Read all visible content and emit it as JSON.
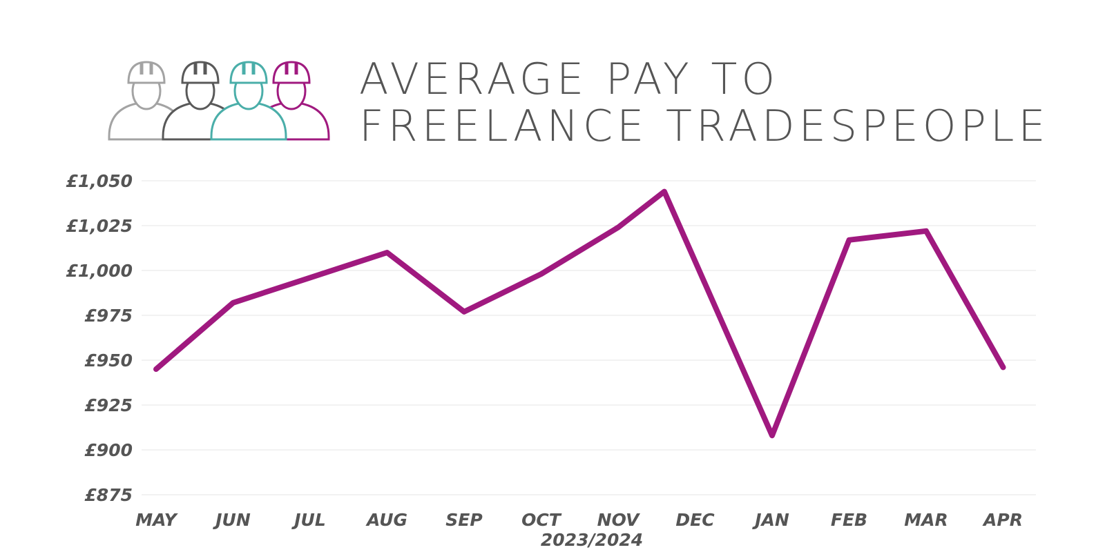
{
  "title": {
    "line1": "AVERAGE PAY TO",
    "line2": "FREELANCE TRADESPEOPLE"
  },
  "logo": {
    "icon": "tradespeople-group-icon",
    "colors": [
      "#a3a3a3",
      "#595959",
      "#4aaea9",
      "#a0197f"
    ]
  },
  "chart_data": {
    "type": "line",
    "title": "AVERAGE PAY TO FREELANCE TRADESPEOPLE",
    "xlabel": "2023/2024",
    "ylabel": "",
    "categories": [
      "MAY",
      "JUN",
      "JUL",
      "AUG",
      "SEP",
      "OCT",
      "NOV",
      "DEC",
      "JAN",
      "FEB",
      "MAR",
      "APR"
    ],
    "x": [
      0,
      1,
      2,
      3,
      4,
      5,
      6,
      6.6,
      8,
      9,
      10,
      11
    ],
    "values": [
      945,
      982,
      996,
      1010,
      977,
      998,
      1024,
      1044,
      908,
      1017,
      1022,
      946
    ],
    "ylim": [
      875,
      1050
    ],
    "yticks": [
      875,
      900,
      925,
      950,
      975,
      1000,
      1025,
      1050
    ],
    "ytick_labels": [
      "£875",
      "£900",
      "£925",
      "£950",
      "£975",
      "£1,000",
      "£1,025",
      "£1,050"
    ],
    "grid": true,
    "line_color": "#a0197f"
  }
}
